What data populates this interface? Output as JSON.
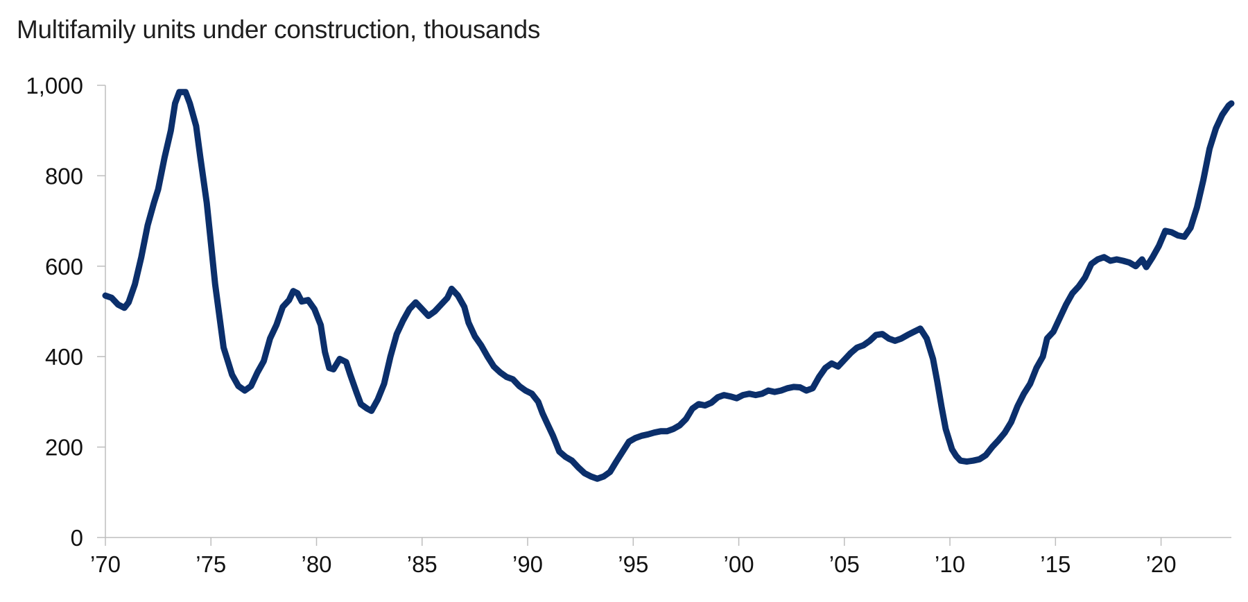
{
  "chart_data": {
    "type": "line",
    "title": "Multifamily units under construction, thousands",
    "xlabel": "",
    "ylabel": "",
    "xlim": [
      1970,
      2023.33
    ],
    "ylim": [
      0,
      1000
    ],
    "grid": false,
    "legend": "none",
    "x_ticks": [
      {
        "x": 1970,
        "label": "’70"
      },
      {
        "x": 1975,
        "label": "’75"
      },
      {
        "x": 1980,
        "label": "’80"
      },
      {
        "x": 1985,
        "label": "’85"
      },
      {
        "x": 1990,
        "label": "’90"
      },
      {
        "x": 1995,
        "label": "’95"
      },
      {
        "x": 2000,
        "label": "’00"
      },
      {
        "x": 2005,
        "label": "’05"
      },
      {
        "x": 2010,
        "label": "’10"
      },
      {
        "x": 2015,
        "label": "’15"
      },
      {
        "x": 2020,
        "label": "’20"
      }
    ],
    "y_ticks": [
      {
        "y": 0,
        "label": "0"
      },
      {
        "y": 200,
        "label": "200"
      },
      {
        "y": 400,
        "label": "400"
      },
      {
        "y": 600,
        "label": "600"
      },
      {
        "y": 800,
        "label": "800"
      },
      {
        "y": 1000,
        "label": "1,000"
      }
    ],
    "series": [
      {
        "color": "#0b2f6b",
        "points": [
          [
            1970.0,
            535
          ],
          [
            1970.3,
            530
          ],
          [
            1970.6,
            515
          ],
          [
            1970.9,
            508
          ],
          [
            1971.1,
            520
          ],
          [
            1971.4,
            560
          ],
          [
            1971.7,
            620
          ],
          [
            1972.0,
            690
          ],
          [
            1972.3,
            740
          ],
          [
            1972.5,
            770
          ],
          [
            1972.8,
            840
          ],
          [
            1973.1,
            900
          ],
          [
            1973.3,
            960
          ],
          [
            1973.5,
            985
          ],
          [
            1973.8,
            985
          ],
          [
            1974.0,
            960
          ],
          [
            1974.3,
            910
          ],
          [
            1974.5,
            840
          ],
          [
            1974.8,
            740
          ],
          [
            1975.0,
            650
          ],
          [
            1975.2,
            560
          ],
          [
            1975.4,
            490
          ],
          [
            1975.6,
            420
          ],
          [
            1975.8,
            390
          ],
          [
            1976.0,
            360
          ],
          [
            1976.3,
            335
          ],
          [
            1976.6,
            325
          ],
          [
            1976.9,
            335
          ],
          [
            1977.2,
            365
          ],
          [
            1977.5,
            390
          ],
          [
            1977.8,
            440
          ],
          [
            1978.1,
            470
          ],
          [
            1978.4,
            510
          ],
          [
            1978.7,
            525
          ],
          [
            1978.9,
            545
          ],
          [
            1979.1,
            540
          ],
          [
            1979.3,
            522
          ],
          [
            1979.6,
            525
          ],
          [
            1979.9,
            505
          ],
          [
            1980.2,
            470
          ],
          [
            1980.4,
            410
          ],
          [
            1980.6,
            375
          ],
          [
            1980.8,
            372
          ],
          [
            1981.1,
            395
          ],
          [
            1981.4,
            388
          ],
          [
            1981.6,
            360
          ],
          [
            1981.9,
            320
          ],
          [
            1982.1,
            295
          ],
          [
            1982.4,
            285
          ],
          [
            1982.6,
            280
          ],
          [
            1982.9,
            305
          ],
          [
            1983.2,
            340
          ],
          [
            1983.5,
            400
          ],
          [
            1983.8,
            450
          ],
          [
            1984.1,
            480
          ],
          [
            1984.4,
            505
          ],
          [
            1984.7,
            520
          ],
          [
            1985.0,
            505
          ],
          [
            1985.3,
            490
          ],
          [
            1985.6,
            500
          ],
          [
            1985.9,
            515
          ],
          [
            1986.2,
            530
          ],
          [
            1986.4,
            550
          ],
          [
            1986.7,
            535
          ],
          [
            1987.0,
            510
          ],
          [
            1987.2,
            475
          ],
          [
            1987.5,
            445
          ],
          [
            1987.8,
            425
          ],
          [
            1988.1,
            400
          ],
          [
            1988.4,
            378
          ],
          [
            1988.7,
            365
          ],
          [
            1989.0,
            355
          ],
          [
            1989.3,
            350
          ],
          [
            1989.6,
            335
          ],
          [
            1989.9,
            325
          ],
          [
            1990.2,
            318
          ],
          [
            1990.5,
            300
          ],
          [
            1990.7,
            275
          ],
          [
            1990.9,
            255
          ],
          [
            1991.2,
            225
          ],
          [
            1991.5,
            190
          ],
          [
            1991.8,
            178
          ],
          [
            1992.1,
            170
          ],
          [
            1992.4,
            155
          ],
          [
            1992.7,
            142
          ],
          [
            1993.0,
            135
          ],
          [
            1993.3,
            130
          ],
          [
            1993.6,
            135
          ],
          [
            1993.9,
            145
          ],
          [
            1994.2,
            168
          ],
          [
            1994.5,
            190
          ],
          [
            1994.8,
            212
          ],
          [
            1995.1,
            220
          ],
          [
            1995.4,
            225
          ],
          [
            1995.7,
            228
          ],
          [
            1996.0,
            232
          ],
          [
            1996.3,
            235
          ],
          [
            1996.6,
            235
          ],
          [
            1996.9,
            240
          ],
          [
            1997.2,
            248
          ],
          [
            1997.5,
            262
          ],
          [
            1997.8,
            285
          ],
          [
            1998.1,
            295
          ],
          [
            1998.4,
            292
          ],
          [
            1998.7,
            298
          ],
          [
            1999.0,
            310
          ],
          [
            1999.3,
            315
          ],
          [
            1999.6,
            312
          ],
          [
            1999.9,
            308
          ],
          [
            2000.2,
            315
          ],
          [
            2000.5,
            318
          ],
          [
            2000.8,
            315
          ],
          [
            2001.1,
            318
          ],
          [
            2001.4,
            325
          ],
          [
            2001.7,
            322
          ],
          [
            2002.0,
            325
          ],
          [
            2002.3,
            330
          ],
          [
            2002.6,
            333
          ],
          [
            2002.9,
            332
          ],
          [
            2003.2,
            325
          ],
          [
            2003.5,
            330
          ],
          [
            2003.8,
            355
          ],
          [
            2004.1,
            375
          ],
          [
            2004.4,
            385
          ],
          [
            2004.7,
            378
          ],
          [
            2005.0,
            393
          ],
          [
            2005.3,
            408
          ],
          [
            2005.6,
            420
          ],
          [
            2005.9,
            425
          ],
          [
            2006.2,
            435
          ],
          [
            2006.5,
            448
          ],
          [
            2006.8,
            450
          ],
          [
            2007.1,
            440
          ],
          [
            2007.4,
            435
          ],
          [
            2007.7,
            440
          ],
          [
            2008.0,
            448
          ],
          [
            2008.3,
            455
          ],
          [
            2008.6,
            462
          ],
          [
            2008.9,
            440
          ],
          [
            2009.2,
            395
          ],
          [
            2009.4,
            345
          ],
          [
            2009.6,
            290
          ],
          [
            2009.8,
            240
          ],
          [
            2010.1,
            195
          ],
          [
            2010.3,
            180
          ],
          [
            2010.5,
            170
          ],
          [
            2010.8,
            168
          ],
          [
            2011.1,
            170
          ],
          [
            2011.4,
            173
          ],
          [
            2011.7,
            182
          ],
          [
            2012.0,
            200
          ],
          [
            2012.3,
            215
          ],
          [
            2012.6,
            232
          ],
          [
            2012.9,
            255
          ],
          [
            2013.2,
            290
          ],
          [
            2013.5,
            318
          ],
          [
            2013.8,
            340
          ],
          [
            2014.1,
            375
          ],
          [
            2014.4,
            400
          ],
          [
            2014.6,
            440
          ],
          [
            2014.9,
            455
          ],
          [
            2015.2,
            485
          ],
          [
            2015.5,
            515
          ],
          [
            2015.8,
            540
          ],
          [
            2016.1,
            555
          ],
          [
            2016.4,
            575
          ],
          [
            2016.7,
            605
          ],
          [
            2017.0,
            615
          ],
          [
            2017.3,
            620
          ],
          [
            2017.6,
            612
          ],
          [
            2017.9,
            615
          ],
          [
            2018.2,
            612
          ],
          [
            2018.5,
            608
          ],
          [
            2018.8,
            600
          ],
          [
            2019.1,
            615
          ],
          [
            2019.3,
            598
          ],
          [
            2019.6,
            620
          ],
          [
            2019.9,
            645
          ],
          [
            2020.2,
            678
          ],
          [
            2020.5,
            675
          ],
          [
            2020.8,
            668
          ],
          [
            2021.1,
            665
          ],
          [
            2021.4,
            685
          ],
          [
            2021.7,
            730
          ],
          [
            2022.0,
            790
          ],
          [
            2022.3,
            860
          ],
          [
            2022.6,
            905
          ],
          [
            2022.9,
            935
          ],
          [
            2023.2,
            955
          ],
          [
            2023.33,
            960
          ]
        ]
      }
    ]
  }
}
